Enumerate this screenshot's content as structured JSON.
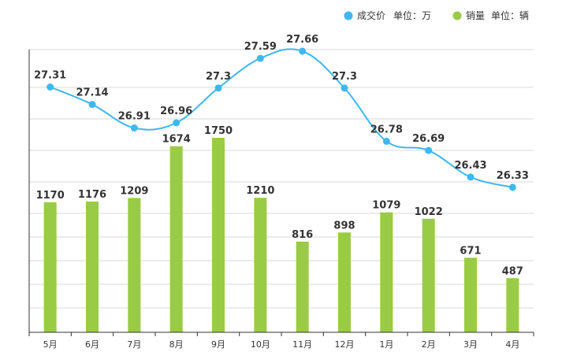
{
  "chart_data": {
    "type": "bar+line",
    "categories": [
      "5月",
      "6月",
      "7月",
      "8月",
      "9月",
      "10月",
      "11月",
      "12月",
      "1月",
      "2月",
      "3月",
      "4月"
    ],
    "series": [
      {
        "name": "成交价",
        "unit_label": "单位：万",
        "type": "line",
        "color": "#3db8f0",
        "values": [
          27.31,
          27.14,
          26.91,
          26.96,
          27.3,
          27.59,
          27.66,
          27.3,
          26.78,
          26.69,
          26.43,
          26.33
        ]
      },
      {
        "name": "销量",
        "unit_label": "单位：辆",
        "type": "bar",
        "color": "#99cc44",
        "values": [
          1170,
          1176,
          1209,
          1674,
          1750,
          1210,
          816,
          898,
          1079,
          1022,
          671,
          487
        ]
      }
    ],
    "grid": true,
    "legend_position": "top-right"
  }
}
